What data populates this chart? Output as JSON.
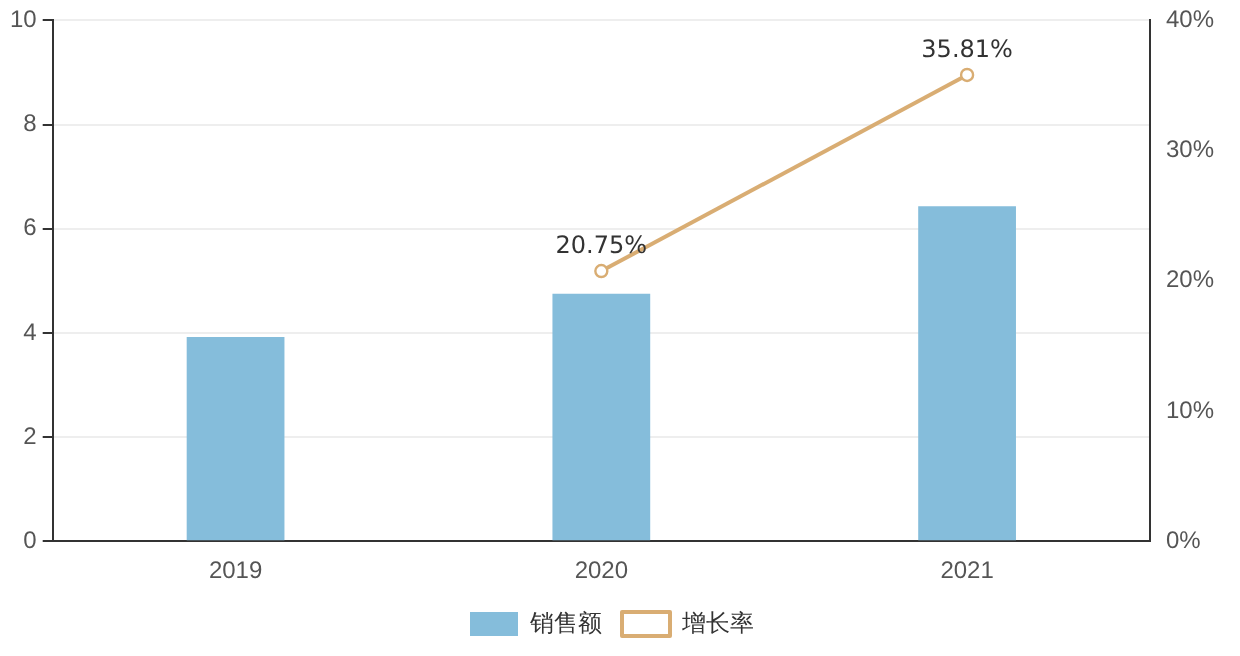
{
  "chart_data": {
    "type": "bar",
    "categories": [
      "2019",
      "2020",
      "2021"
    ],
    "series": [
      {
        "name": "销售额",
        "color": "#85bddb",
        "values": [
          3.92,
          4.75,
          6.43
        ]
      },
      {
        "name": "增长率",
        "type": "line",
        "axis": "y2",
        "color": "#d9ad73",
        "values": [
          null,
          20.75,
          35.81
        ],
        "value_labels": [
          null,
          "20.75%",
          "35.81%"
        ]
      }
    ],
    "ylim": [
      0,
      10
    ],
    "yticks": [
      0,
      2,
      4,
      6,
      8,
      10
    ],
    "y2lim": [
      0,
      40
    ],
    "y2ticks": [
      {
        "value": 0,
        "label": "0%"
      },
      {
        "value": 10,
        "label": "10%"
      },
      {
        "value": 20,
        "label": "20%"
      },
      {
        "value": 30,
        "label": "30%"
      },
      {
        "value": 40,
        "label": "40%"
      }
    ],
    "grid": "y",
    "legend": "bottom",
    "marker": "circle",
    "line_style": "solid"
  }
}
